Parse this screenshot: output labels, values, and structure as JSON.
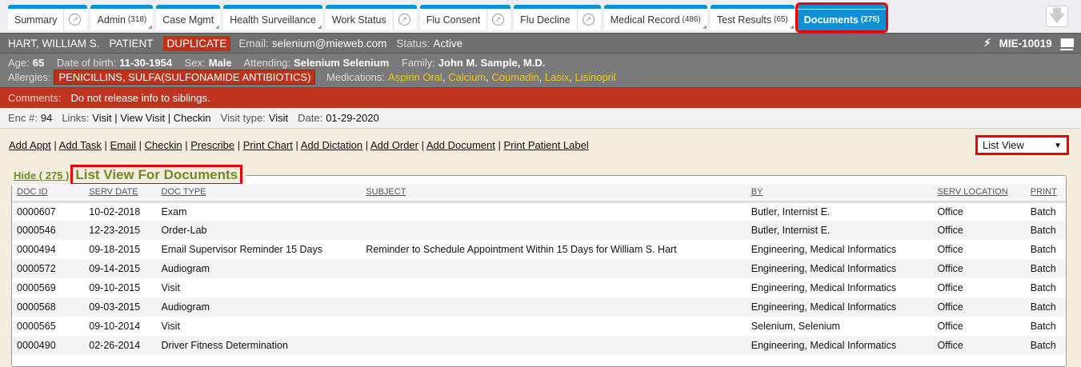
{
  "tabs": [
    {
      "label": "Summary",
      "ext": true
    },
    {
      "label": "Admin",
      "count": "(318)",
      "corner": true
    },
    {
      "label": "Case Mgmt",
      "corner": true
    },
    {
      "label": "Health Surveillance",
      "corner": true
    },
    {
      "label": "Work Status",
      "ext": true
    },
    {
      "label": "Flu Consent",
      "ext": true
    },
    {
      "label": "Flu Decline",
      "ext": true
    },
    {
      "label": "Medical Record",
      "count": "(486)",
      "corner": true
    },
    {
      "label": "Test Results",
      "count": "(65)",
      "corner": true
    },
    {
      "label": "Documents",
      "count": "(275)",
      "active": true
    }
  ],
  "patient": {
    "name": "HART, WILLIAM S.",
    "role": "PATIENT",
    "flag": "DUPLICATE",
    "email_label": "Email:",
    "email": "selenium@mieweb.com",
    "status_label": "Status:",
    "status": "Active",
    "mrn": "MIE-10019",
    "age_label": "Age:",
    "age": "65",
    "dob_label": "Date of birth:",
    "dob": "11-30-1954",
    "sex_label": "Sex:",
    "sex": "Male",
    "attending_label": "Attending:",
    "attending": "Selenium Selenium",
    "family_label": "Family:",
    "family": "John M. Sample, M.D.",
    "allergies_label": "Allergies:",
    "allergies": "PENICILLINS, SULFA(SULFONAMIDE ANTIBIOTICS)",
    "medications_label": "Medications:",
    "medications": [
      "Aspirin Oral",
      "Calcium",
      "Coumadin",
      "Lasix",
      "Lisinopril"
    ]
  },
  "comments": {
    "label": "Comments:",
    "text": "Do not release info to siblings."
  },
  "encounter": {
    "enc_label": "Enc #:",
    "enc": "94",
    "links_label": "Links:",
    "links": "Visit | View Visit | Checkin",
    "type_label": "Visit type:",
    "type": "Visit",
    "date_label": "Date:",
    "date": "01-29-2020"
  },
  "actions": [
    "Add Appt",
    "Add Task",
    "Email",
    "Checkin",
    "Prescribe",
    "Print Chart",
    "Add Dictation",
    "Add Order",
    "Add Document",
    "Print Patient Label"
  ],
  "view_select": "List View",
  "list": {
    "hide_label": "Hide ( 275 )",
    "title": "List View For Documents",
    "columns": [
      "DOC ID",
      "SERV DATE",
      "DOC TYPE",
      "SUBJECT",
      "BY",
      "SERV LOCATION",
      "PRINT"
    ],
    "rows": [
      [
        "0000607",
        "10-02-2018",
        "Exam",
        "",
        "Butler, Internist E.",
        "Office",
        "Batch"
      ],
      [
        "0000546",
        "12-23-2015",
        "Order-Lab",
        "",
        "Butler, Internist E.",
        "Office",
        "Batch"
      ],
      [
        "0000494",
        "09-18-2015",
        "Email Supervisor Reminder 15 Days",
        "Reminder to Schedule Appointment Within 15 Days for William S. Hart",
        "Engineering, Medical Informatics",
        "Office",
        "Batch"
      ],
      [
        "0000572",
        "09-14-2015",
        "Audiogram",
        "",
        "Engineering, Medical Informatics",
        "Office",
        "Batch"
      ],
      [
        "0000569",
        "09-10-2015",
        "Visit",
        "",
        "Engineering, Medical Informatics",
        "Office",
        "Batch"
      ],
      [
        "0000568",
        "09-03-2015",
        "Audiogram",
        "",
        "Engineering, Medical Informatics",
        "Office",
        "Batch"
      ],
      [
        "0000565",
        "09-10-2014",
        "Visit",
        "",
        "Selenium, Selenium",
        "Office",
        "Batch"
      ],
      [
        "0000490",
        "02-26-2014",
        "Driver Fitness Determination",
        "",
        "Engineering, Medical Informatics",
        "Office",
        "Batch"
      ]
    ]
  }
}
